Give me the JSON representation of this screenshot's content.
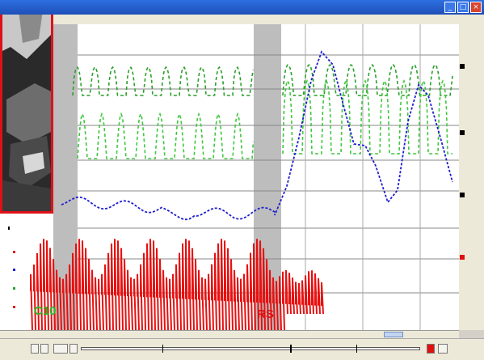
{
  "window": {
    "title": "",
    "buttons": [
      "minimize",
      "maximize",
      "close"
    ]
  },
  "plot": {
    "stage_labels": [
      {
        "text": "C10",
        "color": "#22bb22"
      },
      {
        "text": "RS",
        "color": "#e01010"
      }
    ],
    "trace_colors": {
      "trace1": "#2aa02a",
      "trace2": "#3ec83e",
      "trace3": "#1f1fd0",
      "trace4": "#e81010"
    }
  },
  "colors": {
    "photo_border": "#e01018",
    "shade": "#bdbdbd",
    "titlebar": "#1f4fb8"
  }
}
